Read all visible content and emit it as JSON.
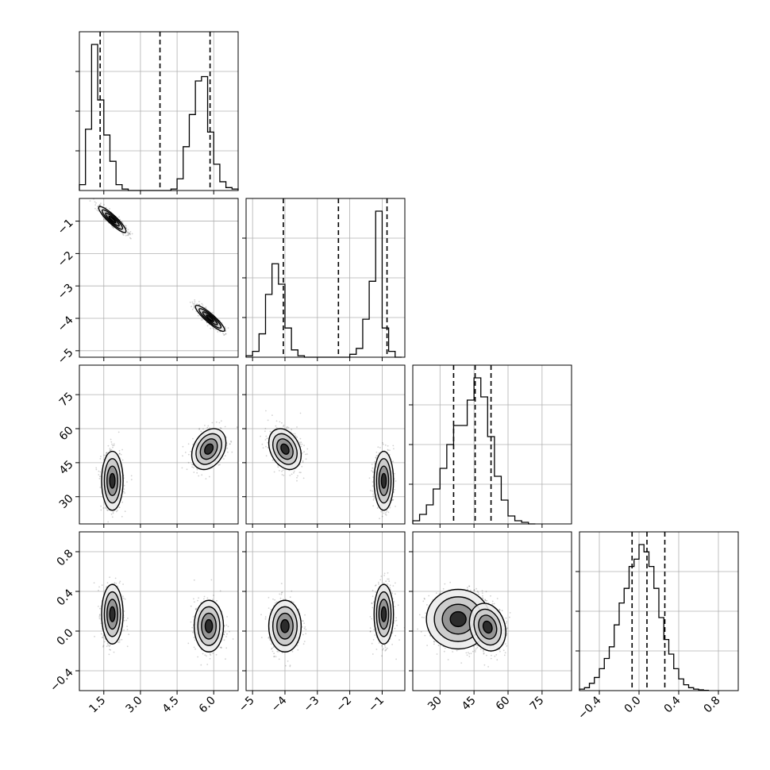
{
  "colors": {
    "ink": "#000000",
    "grid": "#b0b0b0",
    "background": "#ffffff"
  },
  "chart_data": {
    "type": "corner",
    "title": "",
    "grid": true,
    "parameters": [
      {
        "index": 0,
        "label": "",
        "range": [
          0.5,
          7.0
        ],
        "ticks": [
          1.5,
          3.0,
          4.5,
          6.0
        ],
        "tick_labels": [
          "1.5",
          "3.0",
          "4.5",
          "6.0"
        ],
        "quantiles": [
          1.35,
          3.8,
          5.85
        ],
        "histogram": {
          "edges": [
            0.5,
            0.75,
            1.0,
            1.25,
            1.5,
            1.75,
            2.0,
            2.25,
            2.5,
            2.75,
            3.0,
            3.25,
            3.5,
            3.75,
            4.0,
            4.25,
            4.5,
            4.75,
            5.0,
            5.25,
            5.5,
            5.75,
            6.0,
            6.25,
            6.5,
            6.75,
            7.0
          ],
          "counts": [
            0.04,
            0.42,
            1.0,
            0.62,
            0.38,
            0.2,
            0.04,
            0.01,
            0,
            0,
            0,
            0,
            0,
            0,
            0,
            0.01,
            0.08,
            0.3,
            0.52,
            0.75,
            0.78,
            0.4,
            0.18,
            0.06,
            0.02,
            0.01
          ]
        }
      },
      {
        "index": 1,
        "label": "",
        "range": [
          -5.2,
          -0.3
        ],
        "ticks": [
          -5,
          -4,
          -3,
          -2,
          -1
        ],
        "tick_labels": [
          "−5",
          "−4",
          "−3",
          "−2",
          "−1"
        ],
        "quantiles": [
          -4.05,
          -2.35,
          -0.85
        ],
        "histogram": {
          "edges": [
            -5.2,
            -5.0,
            -4.8,
            -4.6,
            -4.4,
            -4.2,
            -4.0,
            -3.8,
            -3.6,
            -3.4,
            -3.2,
            -3.0,
            -2.8,
            -2.6,
            -2.4,
            -2.2,
            -2.0,
            -1.8,
            -1.6,
            -1.4,
            -1.2,
            -1.0,
            -0.8,
            -0.6,
            -0.4
          ],
          "counts": [
            0.01,
            0.04,
            0.16,
            0.43,
            0.64,
            0.5,
            0.2,
            0.05,
            0.01,
            0,
            0,
            0,
            0,
            0,
            0,
            0,
            0.02,
            0.06,
            0.26,
            0.52,
            1.0,
            0.2,
            0.04,
            0
          ]
        }
      },
      {
        "index": 2,
        "label": "",
        "range": [
          18,
          88
        ],
        "ticks": [
          30,
          45,
          60,
          75
        ],
        "tick_labels": [
          "30",
          "45",
          "60",
          "75"
        ],
        "quantiles": [
          36,
          45.5,
          52.5
        ],
        "histogram": {
          "edges": [
            18,
            21,
            24,
            27,
            30,
            33,
            36,
            39,
            42,
            45,
            48,
            51,
            54,
            57,
            60,
            63,
            66,
            69,
            72
          ],
          "counts": [
            0.02,
            0.06,
            0.12,
            0.22,
            0.35,
            0.5,
            0.62,
            0.62,
            0.78,
            0.92,
            0.8,
            0.55,
            0.3,
            0.15,
            0.05,
            0.02,
            0.01,
            0
          ]
        }
      },
      {
        "index": 3,
        "label": "",
        "range": [
          -0.6,
          1.0
        ],
        "ticks": [
          -0.4,
          0.0,
          0.4,
          0.8
        ],
        "tick_labels": [
          "−0.4",
          "0.0",
          "0.4",
          "0.8"
        ],
        "quantiles": [
          -0.07,
          0.08,
          0.26
        ],
        "histogram": {
          "edges": [
            -0.6,
            -0.55,
            -0.5,
            -0.45,
            -0.4,
            -0.35,
            -0.3,
            -0.25,
            -0.2,
            -0.15,
            -0.1,
            -0.05,
            0.0,
            0.05,
            0.1,
            0.15,
            0.2,
            0.25,
            0.3,
            0.35,
            0.4,
            0.45,
            0.5,
            0.55,
            0.6,
            0.65,
            0.7
          ],
          "counts": [
            0.01,
            0.02,
            0.05,
            0.09,
            0.15,
            0.22,
            0.3,
            0.45,
            0.6,
            0.7,
            0.85,
            0.9,
            1.0,
            0.95,
            0.85,
            0.7,
            0.5,
            0.35,
            0.25,
            0.15,
            0.08,
            0.04,
            0.02,
            0.01,
            0.005,
            0.002
          ]
        }
      }
    ],
    "scatter_panels": [
      {
        "x": 0,
        "y": 1,
        "modes": [
          {
            "cx": 1.85,
            "cy": -0.95,
            "sx": 0.28,
            "sy": 0.2,
            "rho": -0.9
          },
          {
            "cx": 5.85,
            "cy": -4.0,
            "sx": 0.3,
            "sy": 0.2,
            "rho": -0.9
          }
        ]
      },
      {
        "x": 0,
        "y": 2,
        "modes": [
          {
            "cx": 1.85,
            "cy": 37,
            "sx": 0.22,
            "sy": 6.5,
            "rho": 0.0
          },
          {
            "cx": 5.8,
            "cy": 51,
            "sx": 0.35,
            "sy": 4.5,
            "rho": 0.3
          }
        ]
      },
      {
        "x": 1,
        "y": 2,
        "modes": [
          {
            "cx": -4.0,
            "cy": 51,
            "sx": 0.25,
            "sy": 4.5,
            "rho": -0.3
          },
          {
            "cx": -0.95,
            "cy": 37,
            "sx": 0.15,
            "sy": 6.5,
            "rho": 0.0
          }
        ]
      },
      {
        "x": 0,
        "y": 3,
        "modes": [
          {
            "cx": 1.85,
            "cy": 0.17,
            "sx": 0.22,
            "sy": 0.15,
            "rho": 0.0
          },
          {
            "cx": 5.8,
            "cy": 0.05,
            "sx": 0.3,
            "sy": 0.13,
            "rho": 0.0
          }
        ]
      },
      {
        "x": 1,
        "y": 3,
        "modes": [
          {
            "cx": -4.0,
            "cy": 0.05,
            "sx": 0.25,
            "sy": 0.13,
            "rho": 0.0
          },
          {
            "cx": -0.95,
            "cy": 0.17,
            "sx": 0.15,
            "sy": 0.15,
            "rho": 0.0
          }
        ]
      },
      {
        "x": 2,
        "y": 3,
        "modes": [
          {
            "cx": 38,
            "cy": 0.12,
            "sx": 7,
            "sy": 0.15,
            "rho": 0.0
          },
          {
            "cx": 51,
            "cy": 0.04,
            "sx": 4,
            "sy": 0.12,
            "rho": -0.2
          }
        ]
      }
    ],
    "contour_levels_sigma": [
      0.5,
      1.0,
      1.5,
      2.0
    ]
  }
}
